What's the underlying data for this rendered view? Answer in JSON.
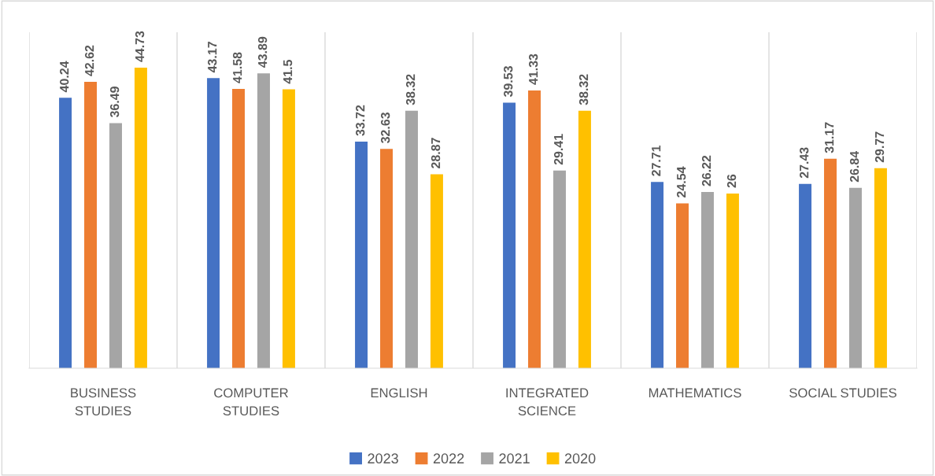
{
  "chart_data": {
    "type": "bar",
    "categories": [
      "BUSINESS STUDIES",
      "COMPUTER STUDIES",
      "ENGLISH",
      "INTEGRATED SCIENCE",
      "MATHEMATICS",
      "SOCIAL STUDIES"
    ],
    "series": [
      {
        "name": "2023",
        "color": "#4472c4",
        "values": [
          40.24,
          43.17,
          33.72,
          39.53,
          27.71,
          27.43
        ]
      },
      {
        "name": "2022",
        "color": "#ed7d31",
        "values": [
          42.62,
          41.58,
          32.63,
          41.33,
          24.54,
          31.17
        ]
      },
      {
        "name": "2021",
        "color": "#a5a5a5",
        "values": [
          36.49,
          43.89,
          38.32,
          29.41,
          26.22,
          26.84
        ]
      },
      {
        "name": "2020",
        "color": "#ffc000",
        "values": [
          44.73,
          41.5,
          28.87,
          38.32,
          26,
          29.77
        ]
      }
    ],
    "ylim": [
      0,
      50
    ],
    "data_labels": true,
    "grid": "x",
    "legend": "bottom",
    "tick_labels": "x"
  }
}
